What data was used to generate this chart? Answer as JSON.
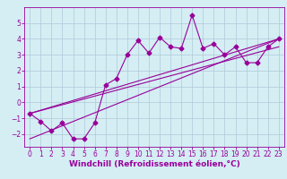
{
  "scatter_x": [
    0,
    1,
    2,
    3,
    4,
    5,
    6,
    7,
    8,
    9,
    10,
    11,
    12,
    13,
    14,
    15,
    16,
    17,
    18,
    19,
    20,
    21,
    22,
    23
  ],
  "scatter_y": [
    -0.7,
    -1.2,
    -1.8,
    -1.3,
    -2.3,
    -2.3,
    -1.3,
    1.1,
    1.5,
    3.0,
    3.9,
    3.1,
    4.1,
    3.5,
    3.4,
    5.5,
    3.4,
    3.7,
    3.0,
    3.5,
    2.5,
    2.5,
    3.5,
    4.0
  ],
  "line1_x": [
    0,
    23
  ],
  "line1_y": [
    -0.7,
    4.0
  ],
  "line2_x": [
    0,
    23
  ],
  "line2_y": [
    -0.7,
    3.5
  ],
  "line3_x": [
    0,
    23
  ],
  "line3_y": [
    -2.3,
    4.0
  ],
  "xlim": [
    -0.5,
    23.5
  ],
  "ylim": [
    -2.8,
    6.0
  ],
  "xticks": [
    0,
    1,
    2,
    3,
    4,
    5,
    6,
    7,
    8,
    9,
    10,
    11,
    12,
    13,
    14,
    15,
    16,
    17,
    18,
    19,
    20,
    21,
    22,
    23
  ],
  "yticks": [
    -2,
    -1,
    0,
    1,
    2,
    3,
    4,
    5
  ],
  "xlabel": "Windchill (Refroidissement éolien,°C)",
  "color": "#990099",
  "bg_color": "#d4eef4",
  "grid_color": "#b0c8d8",
  "marker": "D",
  "markersize": 2.5,
  "linewidth": 0.8,
  "xlabel_fontsize": 6.5,
  "tick_fontsize": 5.5
}
